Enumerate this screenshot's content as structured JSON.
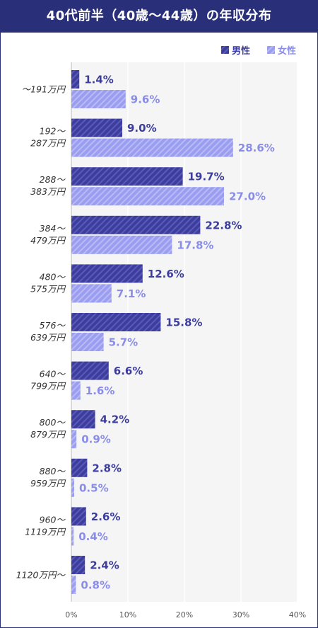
{
  "title": "40代前半（40歳～44歳）の年収分布",
  "colors": {
    "header": "#2a2f7a",
    "male": "#3d3d9e",
    "female": "#9a9df0",
    "male_text": "#3d3d9e",
    "female_text": "#8a8de8",
    "plot_bg": "#f5f5f5"
  },
  "chart_data": {
    "type": "bar",
    "orientation": "horizontal",
    "categories": [
      [
        "～191万円"
      ],
      [
        "192～",
        "287万円"
      ],
      [
        "288～",
        "383万円"
      ],
      [
        "384～",
        "479万円"
      ],
      [
        "480～",
        "575万円"
      ],
      [
        "576～",
        "639万円"
      ],
      [
        "640～",
        "799万円"
      ],
      [
        "800～",
        "879万円"
      ],
      [
        "880～",
        "959万円"
      ],
      [
        "960～",
        "1119万円"
      ],
      [
        "1120万円～"
      ]
    ],
    "series": [
      {
        "name": "男性",
        "values": [
          1.4,
          9.0,
          19.7,
          22.8,
          12.6,
          15.8,
          6.6,
          4.2,
          2.8,
          2.6,
          2.4
        ]
      },
      {
        "name": "女性",
        "values": [
          9.6,
          28.6,
          27.0,
          17.8,
          7.1,
          5.7,
          1.6,
          0.9,
          0.5,
          0.4,
          0.8
        ]
      }
    ],
    "xlim": [
      0,
      40
    ],
    "xticks": [
      "0%",
      "10%",
      "20%",
      "30%",
      "40%"
    ],
    "value_suffix": "%",
    "legend": "top-right",
    "grid": true
  }
}
